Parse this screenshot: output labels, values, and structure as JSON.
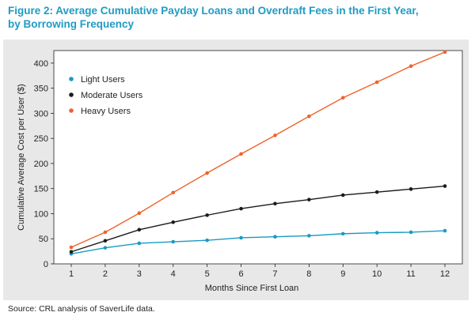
{
  "figure": {
    "title_line1": "Figure 2: Average Cumulative Payday Loans and Overdraft Fees in the First Year,",
    "title_line2": "by Borrowing Frequency",
    "source": "Source: CRL analysis of SaverLife data."
  },
  "chart_data": {
    "type": "line",
    "title": "Figure 2: Average Cumulative Payday Loans and Overdraft Fees in the First Year, by Borrowing Frequency",
    "xlabel": "Months Since First Loan",
    "ylabel": "Cumulative Average Cost per User ($)",
    "x": [
      1,
      2,
      3,
      4,
      5,
      6,
      7,
      8,
      9,
      10,
      11,
      12
    ],
    "xlim": [
      1,
      12
    ],
    "ylim": [
      0,
      425
    ],
    "y_ticks": [
      0,
      50,
      100,
      150,
      200,
      250,
      300,
      350,
      400
    ],
    "grid": false,
    "legend_position": "top-left",
    "series": [
      {
        "name": "Light Users",
        "color": "#1a9ac2",
        "values": [
          20,
          32,
          41,
          44,
          47,
          52,
          54,
          56,
          60,
          62,
          63,
          66
        ]
      },
      {
        "name": "Moderate Users",
        "color": "#1b1b1b",
        "values": [
          24,
          46,
          68,
          83,
          97,
          110,
          120,
          128,
          137,
          143,
          149,
          155
        ]
      },
      {
        "name": "Heavy Users",
        "color": "#f0622a",
        "values": [
          33,
          63,
          101,
          142,
          181,
          219,
          256,
          294,
          331,
          362,
          394,
          422
        ]
      }
    ]
  }
}
